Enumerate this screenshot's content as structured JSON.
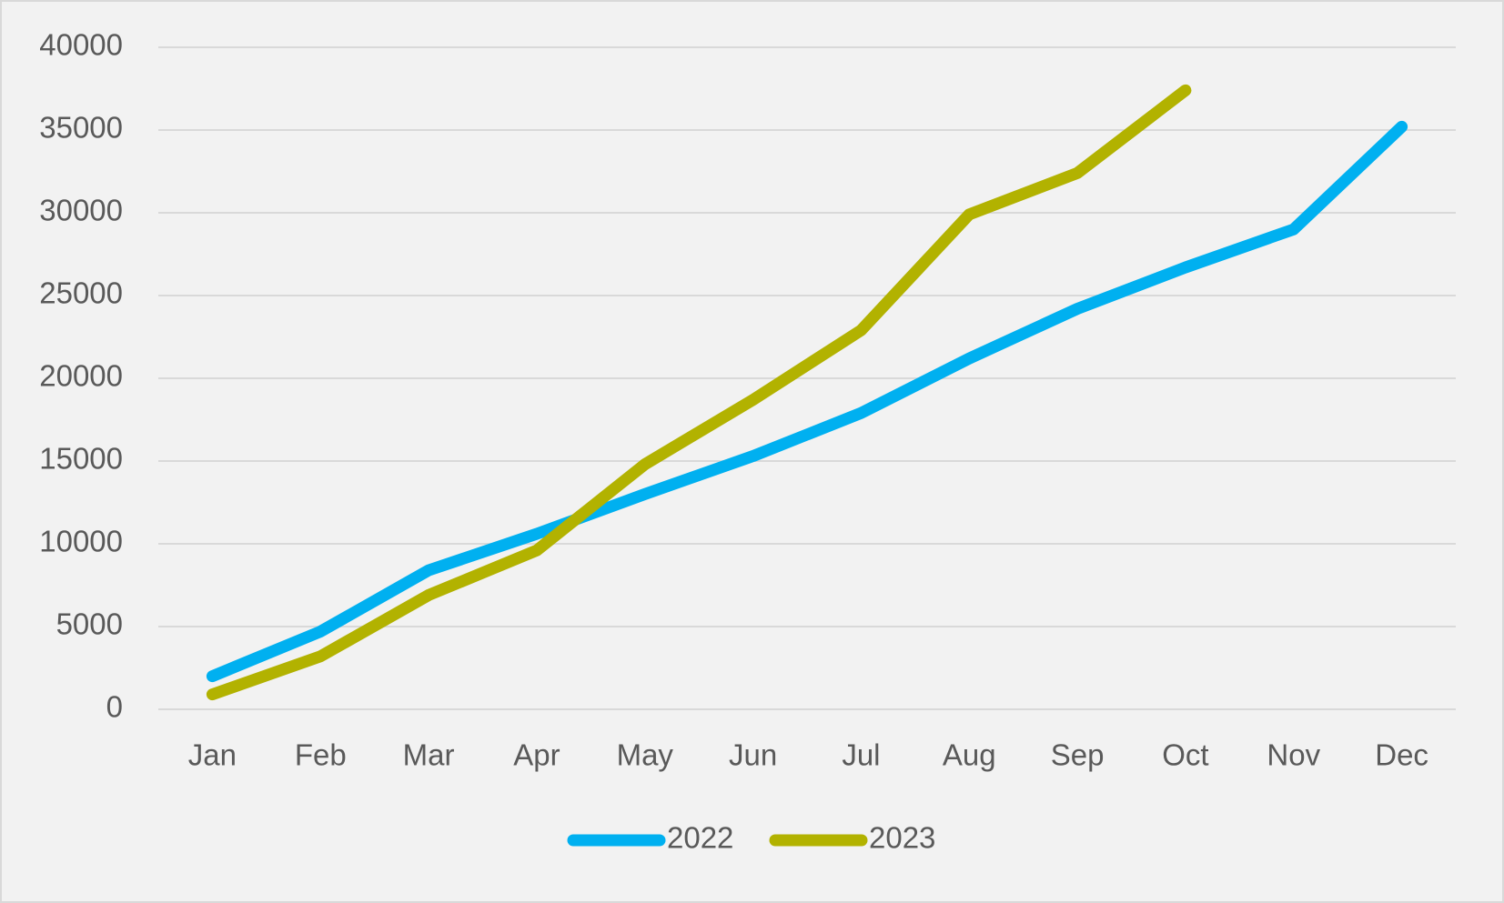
{
  "chart_data": {
    "type": "line",
    "categories": [
      "Jan",
      "Feb",
      "Mar",
      "Apr",
      "May",
      "Jun",
      "Jul",
      "Aug",
      "Sep",
      "Oct",
      "Nov",
      "Dec"
    ],
    "series": [
      {
        "name": "2022",
        "color": "#00b0f0",
        "values": [
          2000,
          4700,
          8400,
          10600,
          13000,
          15300,
          17900,
          21200,
          24200,
          26700,
          29000,
          35200
        ]
      },
      {
        "name": "2023",
        "color": "#b2b200",
        "values": [
          900,
          3200,
          6900,
          9600,
          14800,
          18700,
          22900,
          29900,
          32400,
          37400,
          null,
          null
        ]
      }
    ],
    "ylim": [
      0,
      40000
    ],
    "yticks": [
      0,
      5000,
      10000,
      15000,
      20000,
      25000,
      30000,
      35000,
      40000
    ],
    "grid": true,
    "legend": "bottom"
  }
}
